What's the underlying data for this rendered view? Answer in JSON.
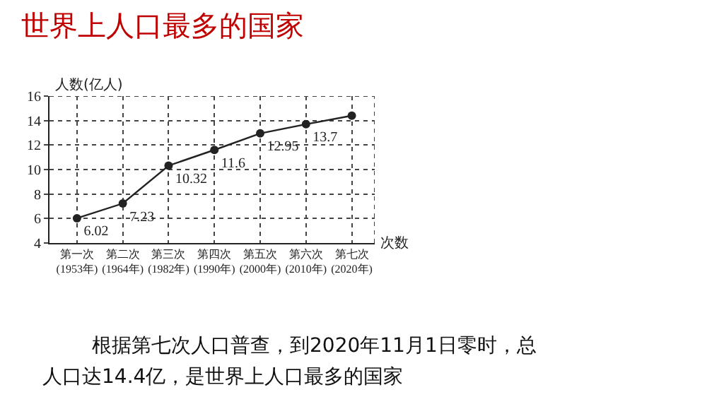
{
  "chart_data": {
    "type": "line",
    "title": "世界上人口最多的国家",
    "categories": [
      "第一次\n(1953年)",
      "第二次\n(1964年)",
      "第三次\n(1982年)",
      "第四次\n(1990年)",
      "第五次\n(2000年)",
      "第六次\n(2010年)",
      "第七次\n(2020年)"
    ],
    "series": [
      {
        "color": "#222222",
        "values": [
          6.02,
          7.23,
          10.32,
          11.6,
          12.95,
          13.7,
          14.4
        ],
        "value_labels": [
          "6.02",
          "7.23",
          "10.32",
          "11.6",
          "12.95",
          "13.7",
          null
        ]
      }
    ],
    "xlabel": "次数",
    "ylabel": "人数(亿人)",
    "ylim": [
      4,
      16
    ],
    "yticks": [
      4,
      6,
      8,
      10,
      12,
      14,
      16
    ],
    "grid": true,
    "marker": "circle",
    "line_style": "solid",
    "annotations": [
      "根据第七次人口普查，到2020年11月1日零时，总",
      "人口达14.4亿，是世界上人口最多的国家"
    ]
  }
}
